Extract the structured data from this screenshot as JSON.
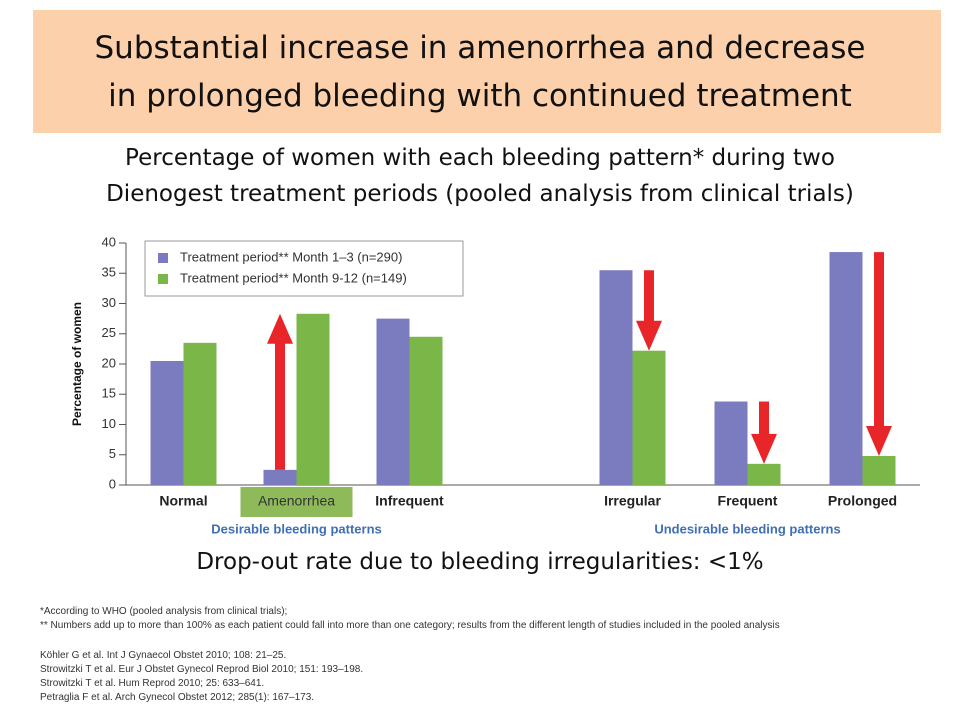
{
  "header": {
    "title": [
      "Substantial increase in amenorrhea and decrease",
      "in prolonged bleeding with continued treatment"
    ]
  },
  "subtitle": [
    "Percentage of women with each bleeding pattern* during two",
    "Dienogest treatment periods (pooled analysis from clinical trials)"
  ],
  "chart_data": {
    "type": "bar",
    "y_label": "Percentage of women",
    "categories": [
      "Normal",
      "Amenorrhea",
      "Infrequent",
      "Irregular",
      "Frequent",
      "Prolonged"
    ],
    "group_labels": [
      "Desirable bleeding patterns",
      "Undesirable bleeding patterns"
    ],
    "series": [
      {
        "name": "Treatment period** Month 1–3 (n=290)",
        "color": "#7b7bbf",
        "values": [
          20.5,
          2.5,
          27.5,
          35.5,
          13.8,
          38.5
        ]
      },
      {
        "name": "Treatment period** Month 9-12 (n=149)",
        "color": "#7ab648",
        "values": [
          23.5,
          28.3,
          24.5,
          22.2,
          3.5,
          4.8
        ]
      }
    ],
    "arrows": [
      false,
      true,
      false,
      true,
      true,
      true
    ],
    "arrow_color": "#e8262a",
    "highlight": [
      false,
      true,
      false,
      false,
      false,
      false
    ],
    "highlight_color": "#8fba5a",
    "ylim": [
      0,
      40
    ],
    "yticks": [
      0,
      5,
      10,
      15,
      20,
      25,
      30,
      35,
      40
    ]
  },
  "dropout": "Drop-out rate due to bleeding irregularities: <1%",
  "footnotes": [
    "*According to WHO (pooled analysis from clinical trials);",
    "** Numbers add up to more than 100% as each patient could fall into more than one category; results from the different length of studies included in the pooled analysis"
  ],
  "references": [
    "Köhler G et al. Int J Gynaecol Obstet 2010; 108: 21–25.",
    "Strowitzki T et al. Eur J Obstet Gynecol Reprod Biol 2010; 151: 193–198.",
    "Strowitzki T et al. Hum Reprod 2010; 25: 633–641.",
    "Petraglia F et al. Arch Gynecol Obstet 2012; 285(1): 167–173."
  ]
}
